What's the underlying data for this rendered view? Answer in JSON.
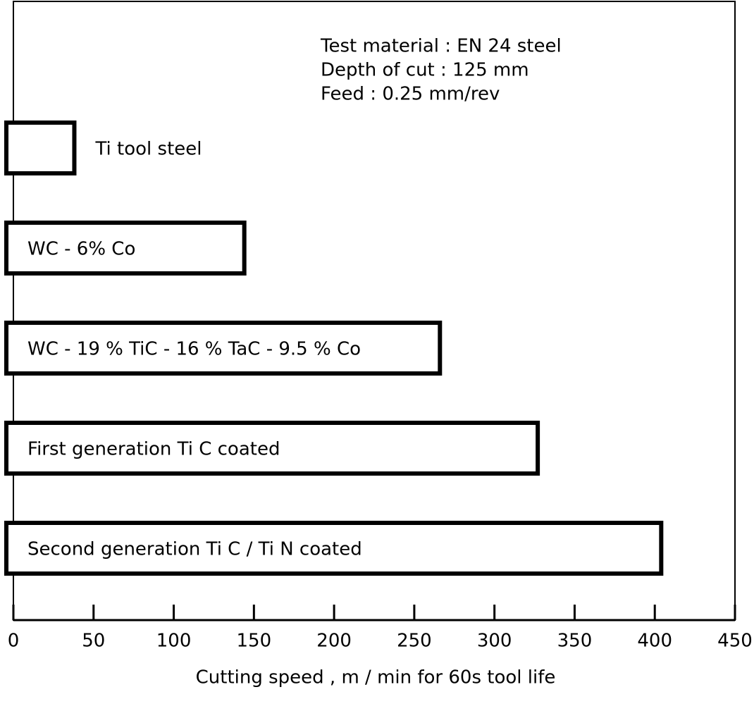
{
  "chart_data": {
    "type": "bar",
    "orientation": "horizontal",
    "xlabel": "Cutting speed ,  m / min for 60s tool life",
    "annotations": [
      "Test material : EN 24 steel",
      "Depth of cut : 125 mm",
      "Feed : 0.25 mm/rev"
    ],
    "categories": [
      "Ti tool steel",
      "WC - 6% Co",
      "WC - 19 % TiC - 16 % TaC - 9.5 % Co",
      "First generation  Ti C  coated",
      "Second generation  Ti C / Ti N  coated"
    ],
    "values": [
      38,
      144,
      266,
      327,
      404
    ],
    "color": "#ffffff",
    "xlim": [
      0,
      450
    ],
    "xticks": [
      0,
      50,
      100,
      150,
      200,
      250,
      300,
      350,
      400,
      450
    ]
  }
}
